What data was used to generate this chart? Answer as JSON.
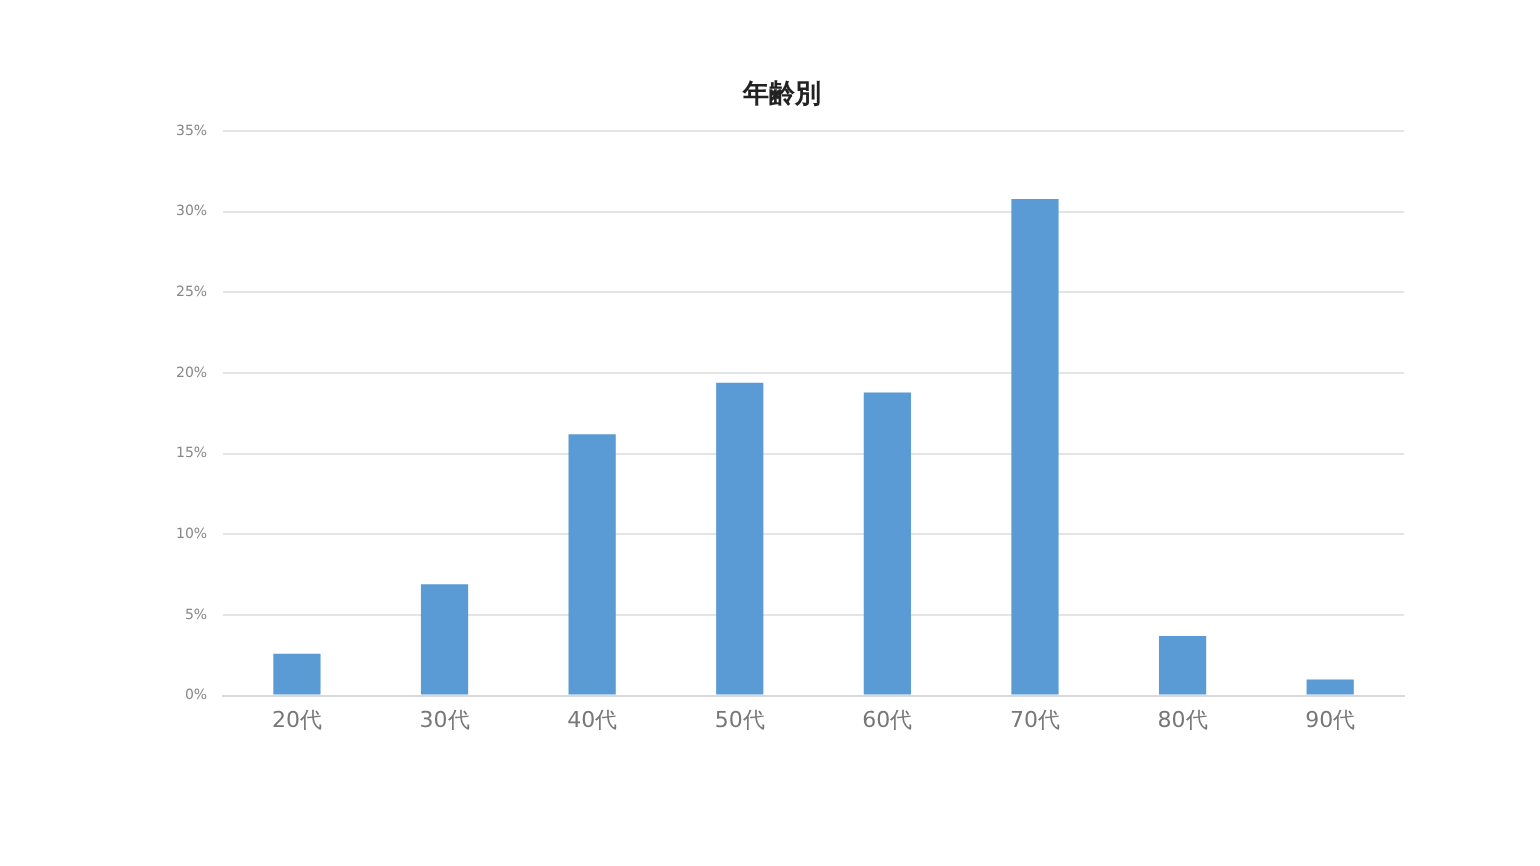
{
  "chart_data": {
    "type": "bar",
    "title": "年齢別",
    "categories": [
      "20代",
      "30代",
      "40代",
      "50代",
      "60代",
      "70代",
      "80代",
      "90代"
    ],
    "values": [
      2.6,
      6.9,
      16.2,
      19.4,
      18.8,
      30.8,
      3.7,
      1.0
    ],
    "color": "#5b9bd5",
    "ylim": [
      0,
      35
    ],
    "yticks": [
      {
        "value": 0,
        "label": "0%"
      },
      {
        "value": 5,
        "label": "5%"
      },
      {
        "value": 10,
        "label": "10%"
      },
      {
        "value": 15,
        "label": "15%"
      },
      {
        "value": 20,
        "label": "20%"
      },
      {
        "value": 25,
        "label": "25%"
      },
      {
        "value": 30,
        "label": "30%"
      },
      {
        "value": 35,
        "label": "35%"
      }
    ],
    "grid": "y",
    "legend": false
  }
}
